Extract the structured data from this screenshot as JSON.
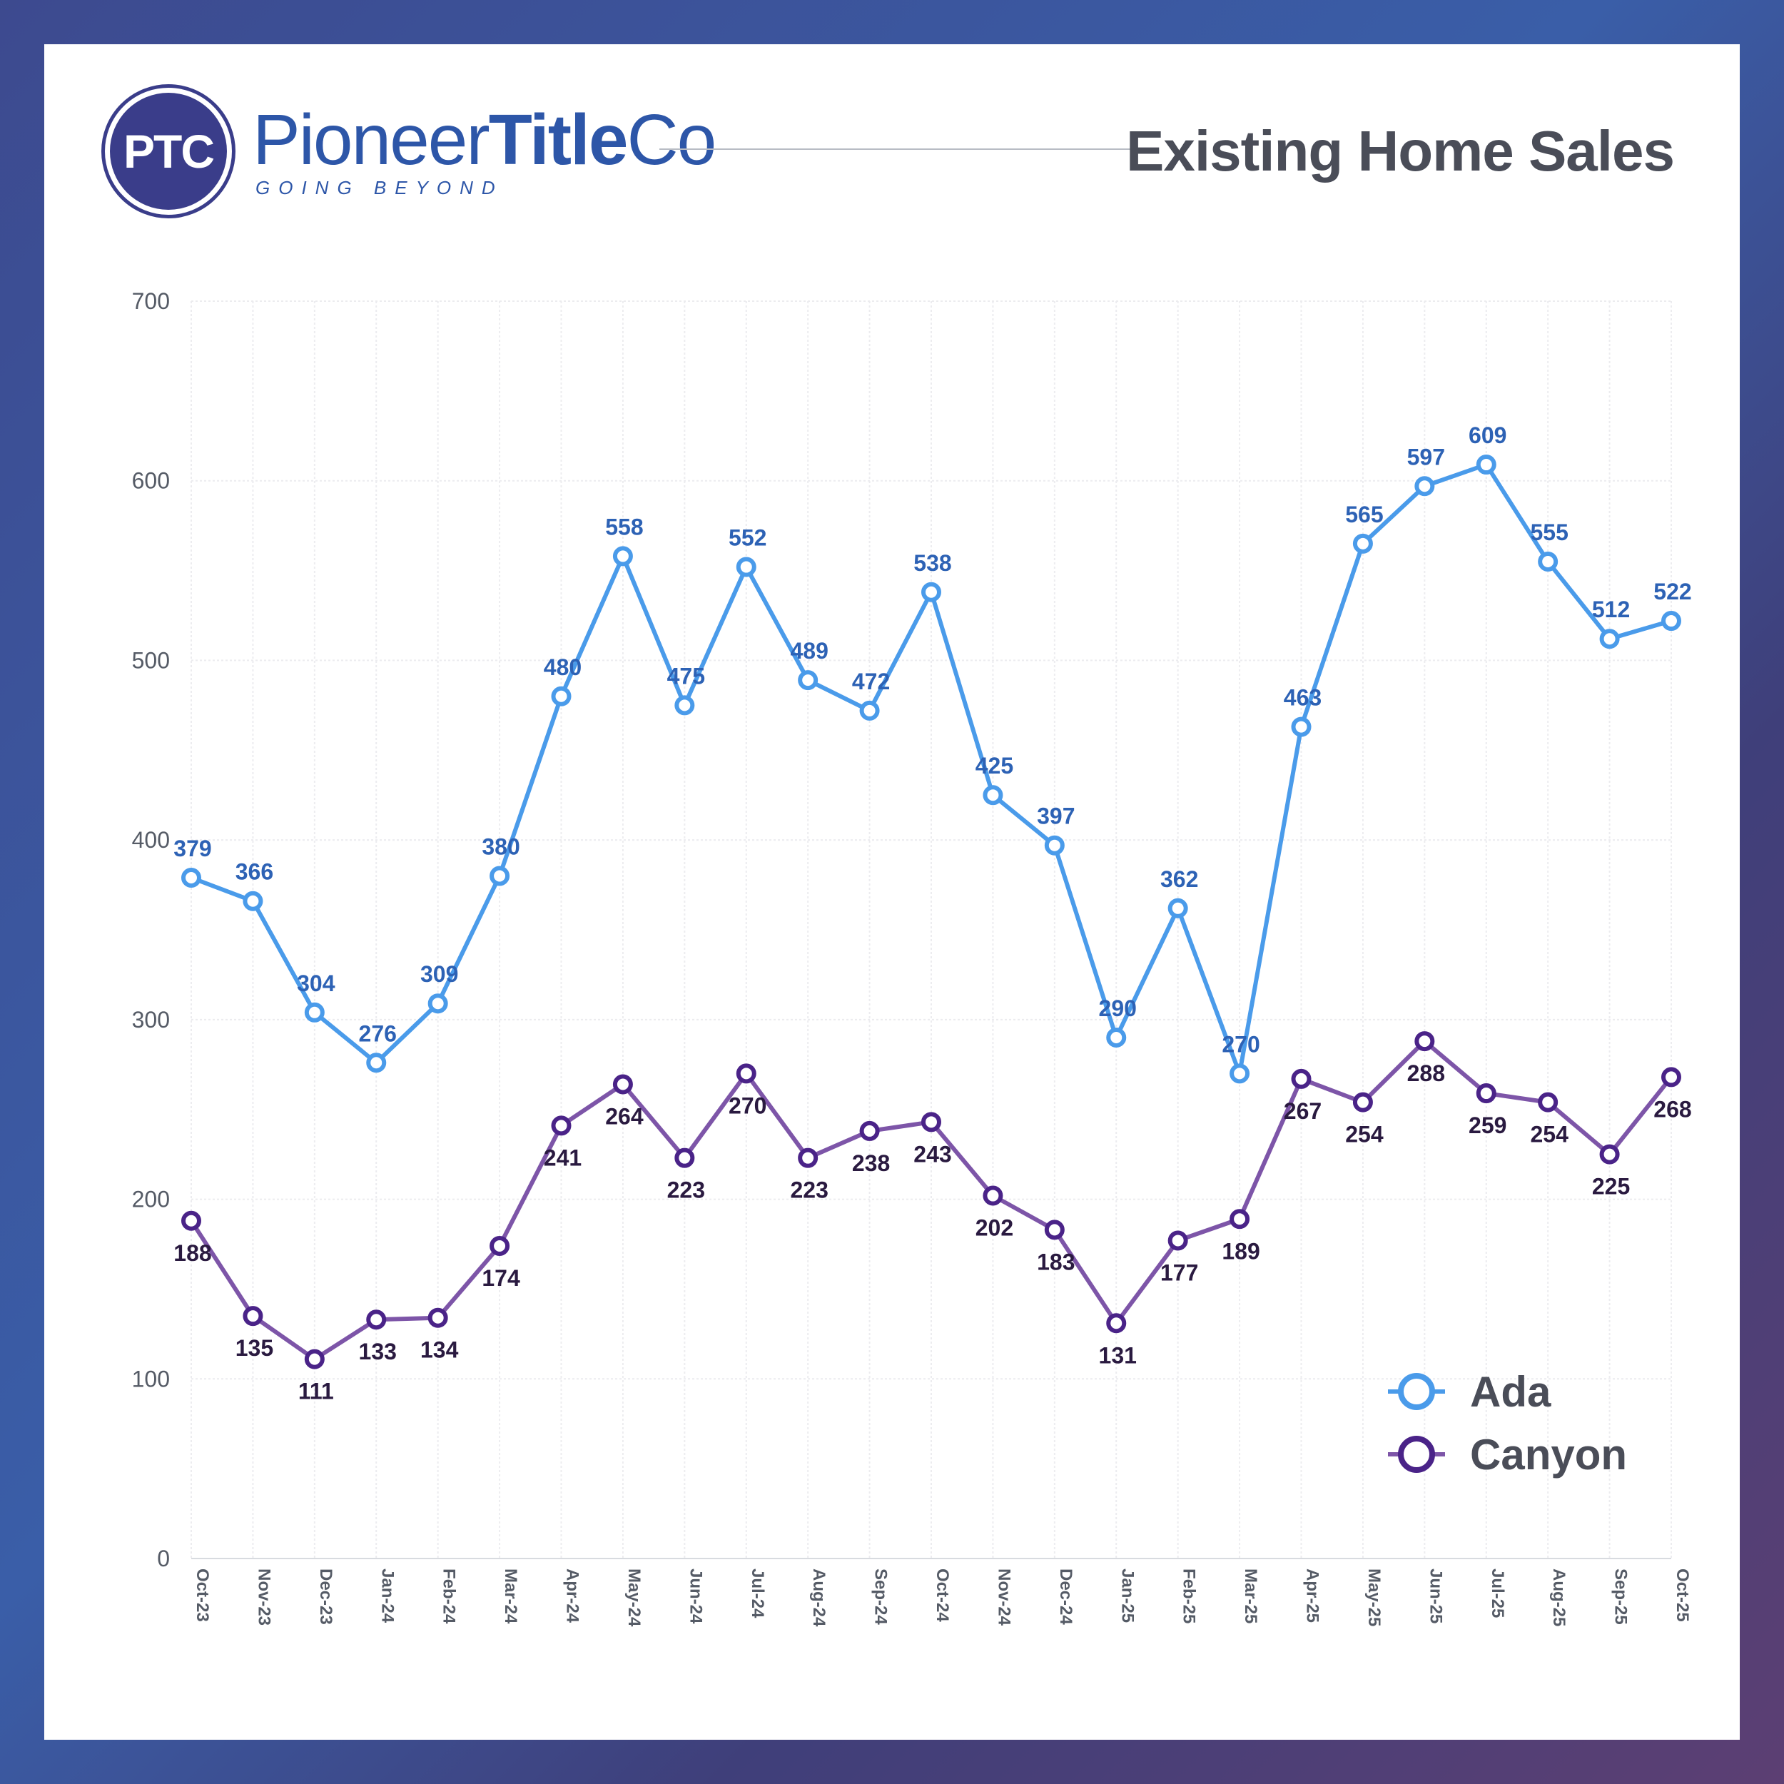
{
  "header": {
    "brand_prefix": "Pioneer",
    "brand_bold": "Title",
    "brand_suffix": "Co",
    "badge": "PTC",
    "tagline": "GOING BEYOND",
    "title": "Existing Home Sales"
  },
  "chart_data": {
    "type": "line",
    "title": "Existing Home Sales",
    "xlabel": "",
    "ylabel": "",
    "categories": [
      "Oct-23",
      "Nov-23",
      "Dec-23",
      "Jan-24",
      "Feb-24",
      "Mar-24",
      "Apr-24",
      "May-24",
      "Jun-24",
      "Jul-24",
      "Aug-24",
      "Sep-24",
      "Oct-24",
      "Nov-24",
      "Dec-24",
      "Jan-25",
      "Feb-25",
      "Mar-25",
      "Apr-25",
      "May-25",
      "Jun-25",
      "Jul-25",
      "Aug-25",
      "Sep-25",
      "Oct-25"
    ],
    "ylim": [
      0,
      700
    ],
    "yticks": [
      0,
      100,
      200,
      300,
      400,
      500,
      600,
      700
    ],
    "grid": true,
    "legend": "bottom-right",
    "series": [
      {
        "name": "Ada",
        "color": "#4a9bea",
        "label_color": "#2d62b5",
        "label_position": "above",
        "values": [
          379,
          366,
          304,
          276,
          309,
          380,
          480,
          558,
          475,
          552,
          489,
          472,
          538,
          425,
          397,
          290,
          362,
          270,
          463,
          565,
          597,
          609,
          555,
          512,
          522
        ]
      },
      {
        "name": "Canyon",
        "color": "#7d55a8",
        "marker_color": "#4a2388",
        "label_color": "#2a1a40",
        "label_position": "below",
        "values": [
          188,
          135,
          111,
          133,
          134,
          174,
          241,
          264,
          223,
          270,
          223,
          238,
          243,
          202,
          183,
          131,
          177,
          189,
          267,
          254,
          288,
          259,
          254,
          225,
          268
        ]
      }
    ]
  }
}
